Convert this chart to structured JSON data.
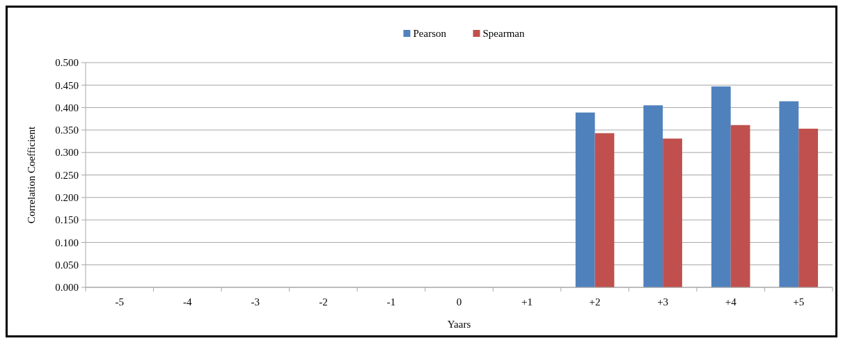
{
  "chart_data": {
    "type": "bar",
    "xlabel": "Yaars",
    "ylabel": "Correlation Coefficient",
    "categories": [
      "-5",
      "-4",
      "-3",
      "-2",
      "-1",
      "0",
      "+1",
      "+2",
      "+3",
      "+4",
      "+5"
    ],
    "series": [
      {
        "name": "Pearson",
        "color": "#4f81bd",
        "values": [
          null,
          null,
          null,
          null,
          null,
          null,
          null,
          0.389,
          0.405,
          0.447,
          0.414
        ]
      },
      {
        "name": "Spearman",
        "color": "#c0504d",
        "values": [
          null,
          null,
          null,
          null,
          null,
          null,
          null,
          0.343,
          0.331,
          0.361,
          0.353
        ]
      }
    ],
    "ylim": [
      0,
      0.5
    ],
    "yticks": [
      {
        "value": 0,
        "label": "0.000"
      },
      {
        "value": 0.05,
        "label": "0.050"
      },
      {
        "value": 0.1,
        "label": "0.100"
      },
      {
        "value": 0.15,
        "label": "0.150"
      },
      {
        "value": 0.2,
        "label": "0.200"
      },
      {
        "value": 0.25,
        "label": "0.250"
      },
      {
        "value": 0.3,
        "label": "0.300"
      },
      {
        "value": 0.35,
        "label": "0.350"
      },
      {
        "value": 0.4,
        "label": "0.400"
      },
      {
        "value": 0.45,
        "label": "0.450"
      },
      {
        "value": 0.5,
        "label": "0.500"
      }
    ],
    "grid": "y",
    "legend": "top"
  }
}
